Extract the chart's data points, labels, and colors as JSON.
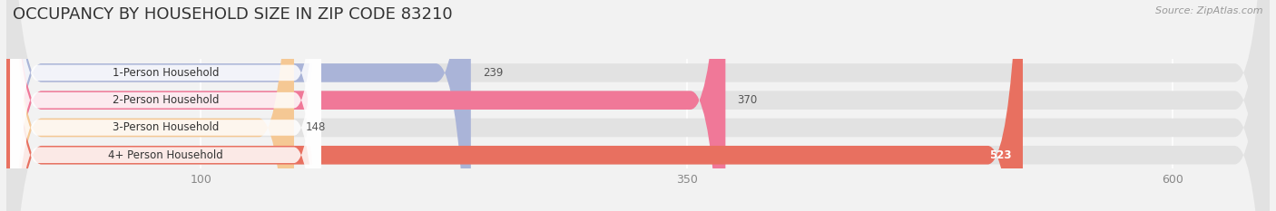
{
  "title": "OCCUPANCY BY HOUSEHOLD SIZE IN ZIP CODE 83210",
  "source": "Source: ZipAtlas.com",
  "categories": [
    "1-Person Household",
    "2-Person Household",
    "3-Person Household",
    "4+ Person Household"
  ],
  "values": [
    239,
    370,
    148,
    523
  ],
  "bar_colors": [
    "#aab4d8",
    "#f07898",
    "#f5c894",
    "#e87060"
  ],
  "label_colors": [
    "#444444",
    "#444444",
    "#444444",
    "#ffffff"
  ],
  "xlim": [
    0,
    650
  ],
  "xticks": [
    100,
    350,
    600
  ],
  "background_color": "#f2f2f2",
  "bar_bg_color": "#e2e2e2",
  "title_fontsize": 13,
  "bar_height": 0.68,
  "figsize": [
    14.06,
    2.33
  ],
  "dpi": 100
}
